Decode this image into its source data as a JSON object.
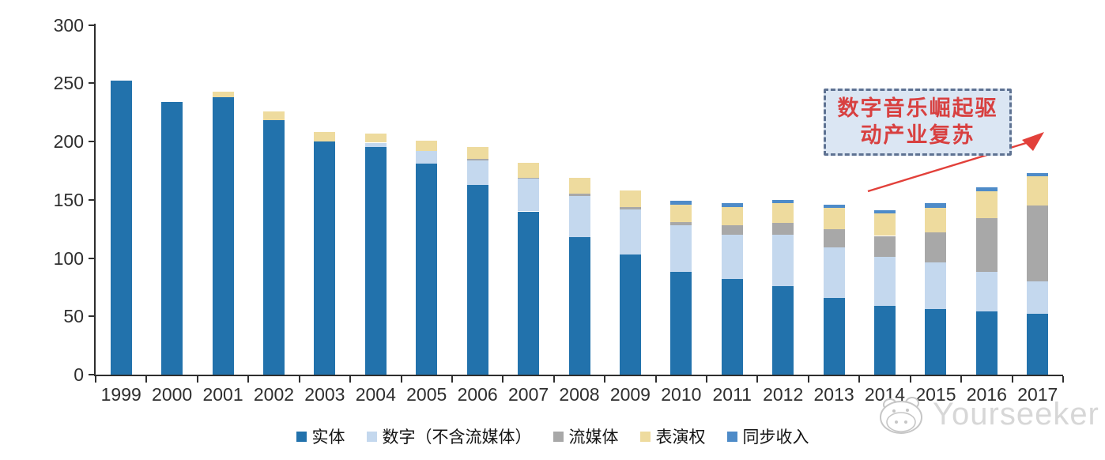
{
  "chart_data": {
    "type": "bar",
    "stacked": true,
    "title": "",
    "xlabel": "",
    "ylabel": "",
    "grid": false,
    "legend_position": "bottom",
    "ylim": [
      0,
      300
    ],
    "yticks": [
      0,
      50,
      100,
      150,
      200,
      250,
      300
    ],
    "categories": [
      "1999",
      "2000",
      "2001",
      "2002",
      "2003",
      "2004",
      "2005",
      "2006",
      "2007",
      "2008",
      "2009",
      "2010",
      "2011",
      "2012",
      "2013",
      "2014",
      "2015",
      "2016",
      "2017"
    ],
    "series": [
      {
        "key": "physical",
        "name": "实体",
        "color": "#2272AC",
        "values": [
          252,
          234,
          238,
          218,
          200,
          195,
          181,
          163,
          140,
          118,
          103,
          88,
          82,
          76,
          66,
          59,
          56,
          54,
          52
        ]
      },
      {
        "key": "digital-excl-streaming",
        "name": "数字（不含流媒体）",
        "color": "#C4D8EE",
        "values": [
          0,
          0,
          0,
          0,
          0,
          4,
          11,
          21,
          28,
          35,
          39,
          40,
          38,
          44,
          43,
          42,
          40,
          34,
          28
        ]
      },
      {
        "key": "streaming",
        "name": "流媒体",
        "color": "#A8A8A8",
        "values": [
          0,
          0,
          0,
          0,
          0,
          0,
          0,
          1,
          1,
          2,
          2,
          3,
          8,
          10,
          16,
          18,
          26,
          46,
          65
        ]
      },
      {
        "key": "performance-rights",
        "name": "表演权",
        "color": "#EEDB9E",
        "values": [
          0,
          0,
          5,
          8,
          8,
          8,
          9,
          10,
          13,
          14,
          14,
          15,
          16,
          17,
          18,
          19,
          21,
          23,
          25
        ]
      },
      {
        "key": "sync",
        "name": "同步收入",
        "color": "#4E8BC8",
        "values": [
          0,
          0,
          0,
          0,
          0,
          0,
          0,
          0,
          0,
          0,
          0,
          3,
          3,
          3,
          3,
          3,
          4,
          4,
          3
        ]
      }
    ]
  },
  "annotation": {
    "line1": "数字音乐崛起驱",
    "line2": "动产业复苏",
    "text_color": "#d84040",
    "box_fill": "#dbe6f3",
    "border_color": "#5e7292",
    "arrow_color": "#e2403a"
  },
  "watermark": {
    "text": "Yourseeker",
    "logo": "hippo-face-icon"
  }
}
